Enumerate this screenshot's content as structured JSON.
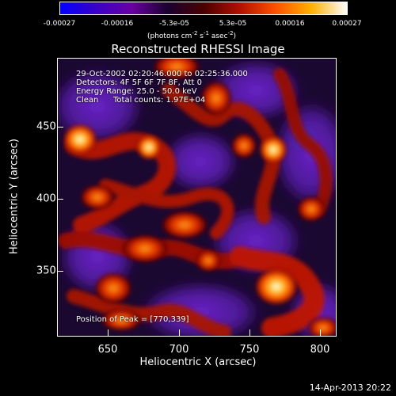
{
  "colorbar": {
    "ticks": [
      "-0.00027",
      "-0.00016",
      "-5.3e-05",
      "5.3e-05",
      "0.00016",
      "0.00027"
    ],
    "unit_prefix": "(photons cm",
    "unit_exp1": "-2",
    "unit_mid": " s",
    "unit_exp2": "-1",
    "unit_mid2": " asec",
    "unit_exp3": "-2",
    "unit_suffix": ")",
    "colors": [
      "#0000ff",
      "#3a00c8",
      "#6a00a0",
      "#1a0030",
      "#4a0000",
      "#b01000",
      "#ff5000",
      "#ffb000",
      "#ffffff"
    ]
  },
  "plot": {
    "title": "Reconstructed RHESSI Image",
    "info_line1": "29-Oct-2002 02:20:46.000 to 02:25:36.000",
    "info_line2": "Detectors: 4F 5F 6F 7F 8F, Att 0",
    "info_line3": "Energy Range: 25.0 - 50.0 keV",
    "info_line4_left": "Clean",
    "info_line4_right": "Total counts: 1.97E+04",
    "peak_label": "Position of Peak = [770,339]",
    "xlabel": "Heliocentric X (arcsec)",
    "ylabel": "Heliocentric Y (arcsec)",
    "xticks": [
      "650",
      "700",
      "750",
      "800"
    ],
    "yticks": [
      "450",
      "400",
      "350"
    ]
  },
  "timestamp": "14-Apr-2013 20:22"
}
